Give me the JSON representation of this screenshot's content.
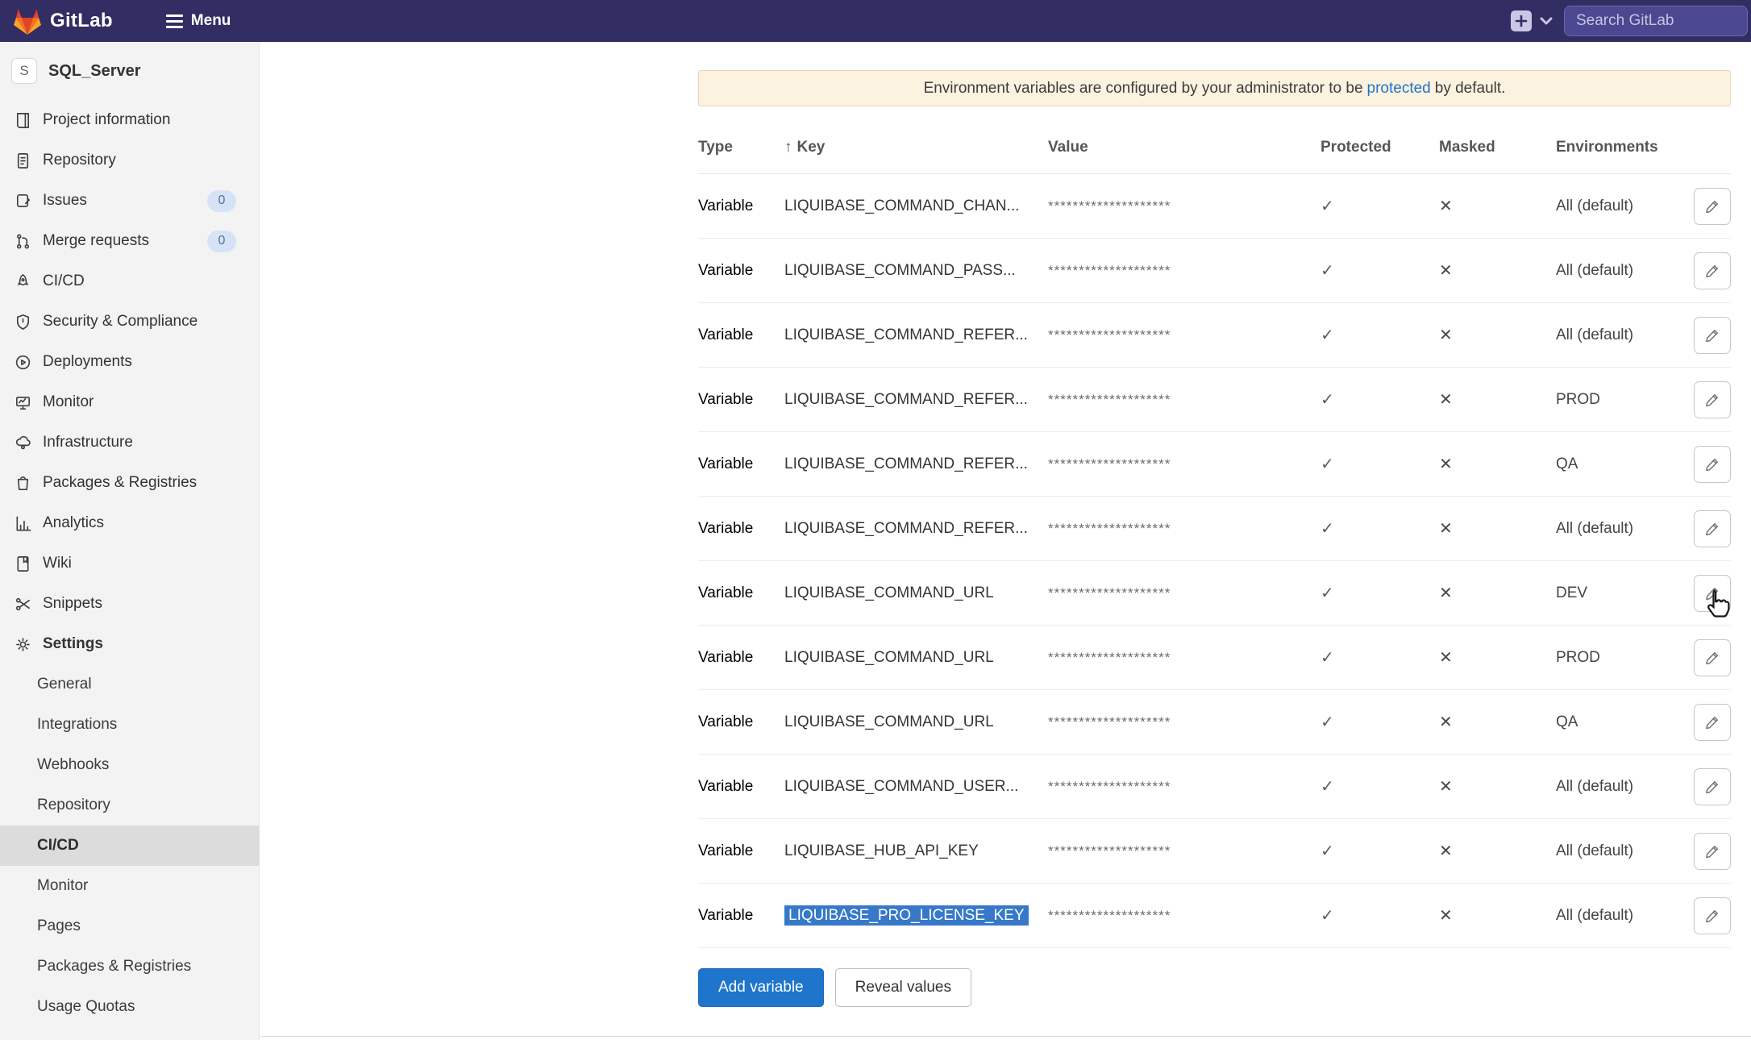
{
  "topbar": {
    "brand": "GitLab",
    "menu_label": "Menu",
    "search_placeholder": "Search GitLab",
    "plus_icon": "plus-square-icon",
    "chevron_icon": "chevron-down-icon"
  },
  "sidebar": {
    "project_initial": "S",
    "project_name": "SQL_Server",
    "items": [
      {
        "label": "Project information",
        "icon": "project-information-icon",
        "level": "top"
      },
      {
        "label": "Repository",
        "icon": "repository-icon",
        "level": "top"
      },
      {
        "label": "Issues",
        "icon": "issues-icon",
        "level": "top",
        "badge": "0"
      },
      {
        "label": "Merge requests",
        "icon": "merge-requests-icon",
        "level": "top",
        "badge": "0"
      },
      {
        "label": "CI/CD",
        "icon": "cicd-icon",
        "level": "top"
      },
      {
        "label": "Security & Compliance",
        "icon": "security-icon",
        "level": "top"
      },
      {
        "label": "Deployments",
        "icon": "deployments-icon",
        "level": "top"
      },
      {
        "label": "Monitor",
        "icon": "monitor-icon",
        "level": "top"
      },
      {
        "label": "Infrastructure",
        "icon": "infrastructure-icon",
        "level": "top"
      },
      {
        "label": "Packages & Registries",
        "icon": "packages-icon",
        "level": "top"
      },
      {
        "label": "Analytics",
        "icon": "analytics-icon",
        "level": "top"
      },
      {
        "label": "Wiki",
        "icon": "wiki-icon",
        "level": "top"
      },
      {
        "label": "Snippets",
        "icon": "snippets-icon",
        "level": "top"
      },
      {
        "label": "Settings",
        "icon": "settings-icon",
        "level": "top",
        "bold": true
      },
      {
        "label": "General",
        "level": "sub"
      },
      {
        "label": "Integrations",
        "level": "sub"
      },
      {
        "label": "Webhooks",
        "level": "sub"
      },
      {
        "label": "Repository",
        "level": "sub"
      },
      {
        "label": "CI/CD",
        "level": "sub",
        "active": true
      },
      {
        "label": "Monitor",
        "level": "sub"
      },
      {
        "label": "Pages",
        "level": "sub"
      },
      {
        "label": "Packages & Registries",
        "level": "sub"
      },
      {
        "label": "Usage Quotas",
        "level": "sub"
      }
    ]
  },
  "banner": {
    "text_before": "Environment variables are configured by your administrator to be",
    "link_text": "protected",
    "text_after": "by default."
  },
  "table": {
    "headers": {
      "type": "Type",
      "sort_indicator": "↑",
      "key": "Key",
      "value": "Value",
      "protected": "Protected",
      "masked": "Masked",
      "environments": "Environments"
    },
    "glyphs": {
      "check": "✓",
      "cross": "✕"
    },
    "rows": [
      {
        "type": "Variable",
        "key": "LIQUIBASE_COMMAND_CHAN...",
        "value": "********************",
        "protected": true,
        "masked": false,
        "environments": "All (default)"
      },
      {
        "type": "Variable",
        "key": "LIQUIBASE_COMMAND_PASS...",
        "value": "********************",
        "protected": true,
        "masked": false,
        "environments": "All (default)"
      },
      {
        "type": "Variable",
        "key": "LIQUIBASE_COMMAND_REFER...",
        "value": "********************",
        "protected": true,
        "masked": false,
        "environments": "All (default)"
      },
      {
        "type": "Variable",
        "key": "LIQUIBASE_COMMAND_REFER...",
        "value": "********************",
        "protected": true,
        "masked": false,
        "environments": "PROD"
      },
      {
        "type": "Variable",
        "key": "LIQUIBASE_COMMAND_REFER...",
        "value": "********************",
        "protected": true,
        "masked": false,
        "environments": "QA"
      },
      {
        "type": "Variable",
        "key": "LIQUIBASE_COMMAND_REFER...",
        "value": "********************",
        "protected": true,
        "masked": false,
        "environments": "All (default)"
      },
      {
        "type": "Variable",
        "key": "LIQUIBASE_COMMAND_URL",
        "value": "********************",
        "protected": true,
        "masked": false,
        "environments": "DEV",
        "cursor_on_edit": true
      },
      {
        "type": "Variable",
        "key": "LIQUIBASE_COMMAND_URL",
        "value": "********************",
        "protected": true,
        "masked": false,
        "environments": "PROD"
      },
      {
        "type": "Variable",
        "key": "LIQUIBASE_COMMAND_URL",
        "value": "********************",
        "protected": true,
        "masked": false,
        "environments": "QA"
      },
      {
        "type": "Variable",
        "key": "LIQUIBASE_COMMAND_USER...",
        "value": "********************",
        "protected": true,
        "masked": false,
        "environments": "All (default)"
      },
      {
        "type": "Variable",
        "key": "LIQUIBASE_HUB_API_KEY",
        "value": "********************",
        "protected": true,
        "masked": false,
        "environments": "All (default)"
      },
      {
        "type": "Variable",
        "key": "LIQUIBASE_PRO_LICENSE_KEY",
        "value": "********************",
        "protected": true,
        "masked": false,
        "environments": "All (default)",
        "selected": true
      }
    ]
  },
  "actions": {
    "add_variable_label": "Add variable",
    "reveal_values_label": "Reveal values"
  },
  "colors": {
    "navbar_bg": "#322e63",
    "search_bg": "#4b4790",
    "accent_blue": "#1f75cb",
    "banner_bg": "#fbf2df",
    "selection_blue": "#3779c8",
    "sidebar_active_bg": "#dcdcdc",
    "badge_bg": "#d6e3f7"
  }
}
